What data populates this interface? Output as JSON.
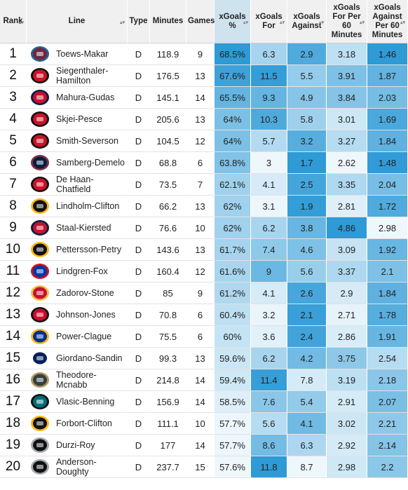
{
  "table": {
    "headers": {
      "rank": "Rank",
      "line": "Line",
      "type": "Type",
      "minutes": "Minutes",
      "games": "Games",
      "xg_pct": "xGoals %",
      "xgf": "xGoals For",
      "xga": "xGoals Against",
      "xgf60": "xGoals For Per 60 Minutes",
      "xga60": "xGoals Against Per 60 Minutes"
    },
    "rows": [
      {
        "rank": "1",
        "team": "COL",
        "logo": "avalanche-logo-icon",
        "line": "Toews-Makar",
        "type": "D",
        "minutes": "118.9",
        "games": "9",
        "xg_pct": "68.5%",
        "xgf": "6.3",
        "xga": "2.9",
        "xgf60": "3.18",
        "xga60": "1.46"
      },
      {
        "rank": "2",
        "team": "NJD",
        "logo": "devils-logo-icon",
        "line": "Siegenthaler-Hamilton",
        "type": "D",
        "minutes": "176.5",
        "games": "13",
        "xg_pct": "67.6%",
        "xgf": "11.5",
        "xga": "5.5",
        "xgf60": "3.91",
        "xga60": "1.87"
      },
      {
        "rank": "3",
        "team": "FLA",
        "logo": "panthers-logo-icon",
        "line": "Mahura-Gudas",
        "type": "D",
        "minutes": "145.1",
        "games": "14",
        "xg_pct": "65.5%",
        "xgf": "9.3",
        "xga": "4.9",
        "xgf60": "3.84",
        "xga60": "2.03"
      },
      {
        "rank": "4",
        "team": "CAR",
        "logo": "hurricanes-logo-icon",
        "line": "Skjei-Pesce",
        "type": "D",
        "minutes": "205.6",
        "games": "13",
        "xg_pct": "64%",
        "xgf": "10.3",
        "xga": "5.8",
        "xgf60": "3.01",
        "xga60": "1.69"
      },
      {
        "rank": "5",
        "team": "NJD",
        "logo": "devils-logo-icon",
        "line": "Smith-Severson",
        "type": "D",
        "minutes": "104.5",
        "games": "12",
        "xg_pct": "64%",
        "xgf": "5.7",
        "xga": "3.2",
        "xgf60": "3.27",
        "xga60": "1.84"
      },
      {
        "rank": "6",
        "team": "WPG",
        "logo": "jets-logo-icon",
        "line": "Samberg-Demelo",
        "type": "D",
        "minutes": "68.8",
        "games": "6",
        "xg_pct": "63.8%",
        "xgf": "3",
        "xga": "1.7",
        "xgf60": "2.62",
        "xga60": "1.48"
      },
      {
        "rank": "7",
        "team": "CAR",
        "logo": "hurricanes-logo-icon",
        "line": "De Haan-Chatfield",
        "type": "D",
        "minutes": "73.5",
        "games": "7",
        "xg_pct": "62.1%",
        "xgf": "4.1",
        "xga": "2.5",
        "xgf60": "3.35",
        "xga60": "2.04"
      },
      {
        "rank": "8",
        "team": "BOS",
        "logo": "bruins-logo-icon",
        "line": "Lindholm-Clifton",
        "type": "D",
        "minutes": "66.2",
        "games": "13",
        "xg_pct": "62%",
        "xgf": "3.1",
        "xga": "1.9",
        "xgf60": "2.81",
        "xga60": "1.72"
      },
      {
        "rank": "9",
        "team": "FLA",
        "logo": "panthers-logo-icon",
        "line": "Staal-Kiersted",
        "type": "D",
        "minutes": "76.6",
        "games": "10",
        "xg_pct": "62%",
        "xgf": "6.2",
        "xga": "3.8",
        "xgf60": "4.86",
        "xga60": "2.98"
      },
      {
        "rank": "10",
        "team": "PIT",
        "logo": "penguins-logo-icon",
        "line": "Pettersson-Petry",
        "type": "D",
        "minutes": "143.6",
        "games": "13",
        "xg_pct": "61.7%",
        "xgf": "7.4",
        "xga": "4.6",
        "xgf60": "3.09",
        "xga60": "1.92"
      },
      {
        "rank": "11",
        "team": "NYR",
        "logo": "rangers-logo-icon",
        "line": "Lindgren-Fox",
        "type": "D",
        "minutes": "160.4",
        "games": "12",
        "xg_pct": "61.6%",
        "xgf": "9",
        "xga": "5.6",
        "xgf60": "3.37",
        "xga60": "2.1"
      },
      {
        "rank": "12",
        "team": "CGY",
        "logo": "flames-logo-icon",
        "line": "Zadorov-Stone",
        "type": "D",
        "minutes": "85",
        "games": "9",
        "xg_pct": "61.2%",
        "xgf": "4.1",
        "xga": "2.6",
        "xgf60": "2.9",
        "xga60": "1.84"
      },
      {
        "rank": "13",
        "team": "CHI",
        "logo": "blackhawks-logo-icon",
        "line": "Johnson-Jones",
        "type": "D",
        "minutes": "70.8",
        "games": "6",
        "xg_pct": "60.4%",
        "xgf": "3.2",
        "xga": "2.1",
        "xgf60": "2.71",
        "xga60": "1.78"
      },
      {
        "rank": "14",
        "team": "BUF",
        "logo": "sabres-logo-icon",
        "line": "Power-Clague",
        "type": "D",
        "minutes": "75.5",
        "games": "6",
        "xg_pct": "60%",
        "xgf": "3.6",
        "xga": "2.4",
        "xgf60": "2.86",
        "xga60": "1.91"
      },
      {
        "rank": "15",
        "team": "TOR",
        "logo": "maple-leafs-logo-icon",
        "line": "Giordano-Sandin",
        "type": "D",
        "minutes": "99.3",
        "games": "13",
        "xg_pct": "59.6%",
        "xgf": "6.2",
        "xga": "4.2",
        "xgf60": "3.75",
        "xga60": "2.54"
      },
      {
        "rank": "16",
        "team": "VGK",
        "logo": "golden-knights-logo-icon",
        "line": "Theodore-Mcnabb",
        "type": "D",
        "minutes": "214.8",
        "games": "14",
        "xg_pct": "59.4%",
        "xgf": "11.4",
        "xga": "7.8",
        "xgf60": "3.19",
        "xga60": "2.18"
      },
      {
        "rank": "17",
        "team": "SJS",
        "logo": "sharks-logo-icon",
        "line": "Vlasic-Benning",
        "type": "D",
        "minutes": "156.9",
        "games": "14",
        "xg_pct": "58.5%",
        "xgf": "7.6",
        "xga": "5.4",
        "xgf60": "2.91",
        "xga60": "2.07"
      },
      {
        "rank": "18",
        "team": "BOS",
        "logo": "bruins-logo-icon",
        "line": "Forbort-Clifton",
        "type": "D",
        "minutes": "111.1",
        "games": "10",
        "xg_pct": "57.7%",
        "xgf": "5.6",
        "xga": "4.1",
        "xgf60": "3.02",
        "xga60": "2.21"
      },
      {
        "rank": "19",
        "team": "LAK",
        "logo": "kings-logo-icon",
        "line": "Durzi-Roy",
        "type": "D",
        "minutes": "177",
        "games": "14",
        "xg_pct": "57.7%",
        "xgf": "8.6",
        "xga": "6.3",
        "xgf60": "2.92",
        "xga60": "2.14"
      },
      {
        "rank": "20",
        "team": "LAK",
        "logo": "kings-logo-icon",
        "line": "Anderson-Doughty",
        "type": "D",
        "minutes": "237.7",
        "games": "15",
        "xg_pct": "57.6%",
        "xgf": "11.8",
        "xga": "8.7",
        "xgf60": "2.98",
        "xga60": "2.2"
      }
    ]
  },
  "colors": {
    "accent_dark": "#2e9ad6",
    "accent_light": "#eef7fc",
    "header_bg": "#f0f0f0",
    "header_active": "#cfe3ef"
  }
}
